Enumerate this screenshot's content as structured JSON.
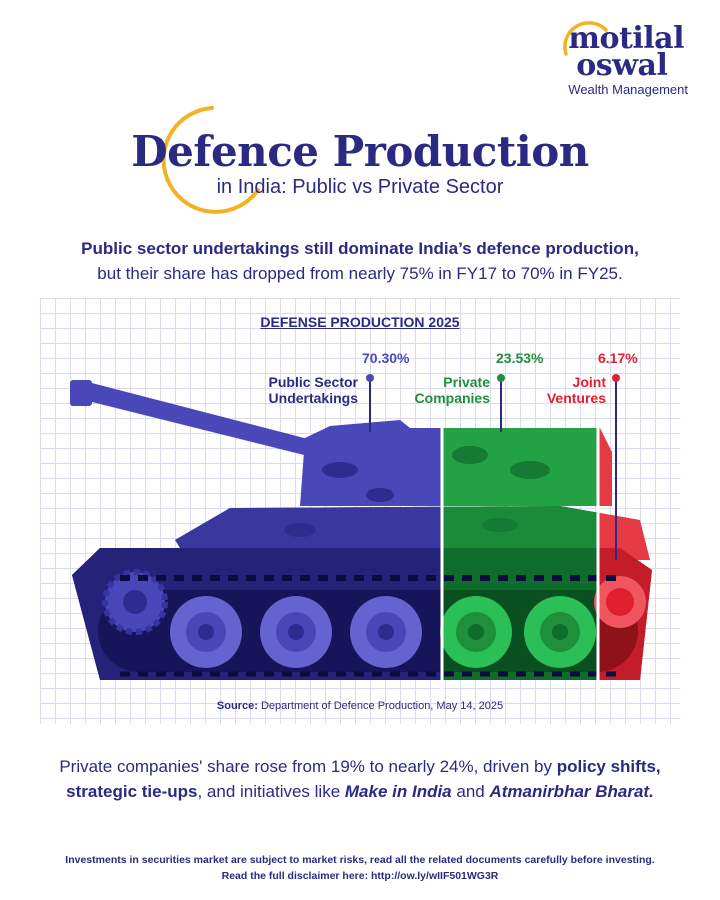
{
  "brand": {
    "line1": "motilal",
    "line2": "oswal",
    "tagline": "Wealth Management"
  },
  "header": {
    "title": "Defence Production",
    "subtitle": "in India: Public vs Private Sector"
  },
  "intro": {
    "bold": "Public sector undertakings still dominate India’s defence production,",
    "rest": "but their share has dropped from nearly 75% in FY17 to 70% in FY25."
  },
  "chart_data": {
    "type": "pie",
    "title": "DEFENSE PRODUCTION 2025",
    "unit": "%",
    "categories": [
      "Public Sector Undertakings",
      "Private Companies",
      "Joint Ventures"
    ],
    "values": [
      70.3,
      23.53,
      6.17
    ],
    "value_labels": [
      "70.30%",
      "23.53%",
      "6.17%"
    ],
    "colors": [
      "#4a48b8",
      "#1f8f3c",
      "#e0202e"
    ]
  },
  "labels": {
    "psu": [
      "Public Sector",
      "Undertakings"
    ],
    "private": [
      "Private",
      "Companies"
    ],
    "jv": [
      "Joint",
      "Ventures"
    ]
  },
  "source": {
    "prefix": "Source:",
    "text": "Department of Defence Production, May 14, 2025"
  },
  "bottom": {
    "t1": "Private companies' share rose from 19% to nearly 24%, driven by ",
    "b1": "policy shifts, strategic tie-ups",
    "t2": ", and initiatives like ",
    "i1": "Make in India",
    "t3": " and ",
    "i2": "Atmanirbhar Bharat."
  },
  "disclaimer": {
    "line1": "Investments in securities market are subject to market risks, read all the related documents carefully before investing.",
    "line2": "Read the full disclaimer here: http://ow.ly/wIIF501WG3R"
  },
  "icons": {
    "brand_arc": "gold-arc-icon",
    "title_arc": "gold-circle-icon",
    "tank": "tank-illustration"
  }
}
